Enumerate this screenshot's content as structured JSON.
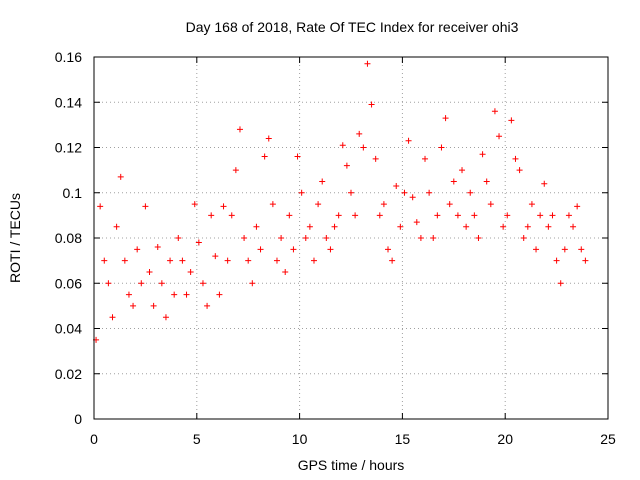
{
  "chart_data": {
    "type": "scatter",
    "title": "Day 168 of 2018, Rate Of TEC Index for receiver ohi3",
    "xlabel": "GPS time / hours",
    "ylabel": "ROTI / TECUs",
    "xlim": [
      0,
      25
    ],
    "ylim": [
      0,
      0.16
    ],
    "x_ticks": [
      0,
      5,
      10,
      15,
      20,
      25
    ],
    "y_ticks": [
      0,
      0.02,
      0.04,
      0.06,
      0.08,
      0.1,
      0.12,
      0.14,
      0.16
    ],
    "x_tick_labels": [
      "0",
      "5",
      "10",
      "15",
      "20",
      "25"
    ],
    "y_tick_labels": [
      "0",
      "0.02",
      "0.04",
      "0.06",
      "0.08",
      "0.1",
      "0.12",
      "0.14",
      "0.16"
    ],
    "grid": true,
    "marker": "plus",
    "color": "#ff0000",
    "series": [
      {
        "x": [
          0.1,
          0.3,
          0.5,
          0.7,
          0.9,
          1.1,
          1.3,
          1.5,
          1.7,
          1.9,
          2.1,
          2.3,
          2.5,
          2.7,
          2.9,
          3.1,
          3.3,
          3.5,
          3.7,
          3.9,
          4.1,
          4.3,
          4.5,
          4.7,
          4.9,
          5.1,
          5.3,
          5.5,
          5.7,
          5.9,
          6.1,
          6.3,
          6.5,
          6.7,
          6.9,
          7.1,
          7.3,
          7.5,
          7.7,
          7.9,
          8.1,
          8.3,
          8.5,
          8.7,
          8.9,
          9.1,
          9.3,
          9.5,
          9.7,
          9.9,
          10.1,
          10.3,
          10.5,
          10.7,
          10.9,
          11.1,
          11.3,
          11.5,
          11.7,
          11.9,
          12.1,
          12.3,
          12.5,
          12.7,
          12.9,
          13.1,
          13.3,
          13.5,
          13.7,
          13.9,
          14.1,
          14.3,
          14.5,
          14.7,
          14.9,
          15.1,
          15.3,
          15.5,
          15.7,
          15.9,
          16.1,
          16.3,
          16.5,
          16.7,
          16.9,
          17.1,
          17.3,
          17.5,
          17.7,
          17.9,
          18.1,
          18.3,
          18.5,
          18.7,
          18.9,
          19.1,
          19.3,
          19.5,
          19.7,
          19.9,
          20.1,
          20.3,
          20.5,
          20.7,
          20.9,
          21.1,
          21.3,
          21.5,
          21.7,
          21.9,
          22.1,
          22.3,
          22.5,
          22.7,
          22.9,
          23.1,
          23.3,
          23.5,
          23.7,
          23.9
        ],
        "y": [
          0.035,
          0.094,
          0.07,
          0.06,
          0.045,
          0.085,
          0.107,
          0.07,
          0.055,
          0.05,
          0.075,
          0.06,
          0.094,
          0.065,
          0.05,
          0.076,
          0.06,
          0.045,
          0.07,
          0.055,
          0.08,
          0.07,
          0.055,
          0.065,
          0.095,
          0.078,
          0.06,
          0.05,
          0.09,
          0.072,
          0.055,
          0.094,
          0.07,
          0.09,
          0.11,
          0.128,
          0.08,
          0.07,
          0.06,
          0.085,
          0.075,
          0.116,
          0.124,
          0.095,
          0.07,
          0.08,
          0.065,
          0.09,
          0.075,
          0.116,
          0.1,
          0.08,
          0.085,
          0.07,
          0.095,
          0.105,
          0.08,
          0.075,
          0.085,
          0.09,
          0.121,
          0.112,
          0.1,
          0.09,
          0.126,
          0.12,
          0.157,
          0.139,
          0.115,
          0.09,
          0.095,
          0.075,
          0.07,
          0.103,
          0.085,
          0.1,
          0.123,
          0.098,
          0.087,
          0.08,
          0.115,
          0.1,
          0.08,
          0.09,
          0.12,
          0.133,
          0.095,
          0.105,
          0.09,
          0.11,
          0.085,
          0.1,
          0.09,
          0.08,
          0.117,
          0.105,
          0.095,
          0.136,
          0.125,
          0.085,
          0.09,
          0.132,
          0.115,
          0.11,
          0.08,
          0.085,
          0.095,
          0.075,
          0.09,
          0.104,
          0.085,
          0.09,
          0.07,
          0.06,
          0.075,
          0.09,
          0.085,
          0.094,
          0.075,
          0.07
        ]
      }
    ]
  }
}
